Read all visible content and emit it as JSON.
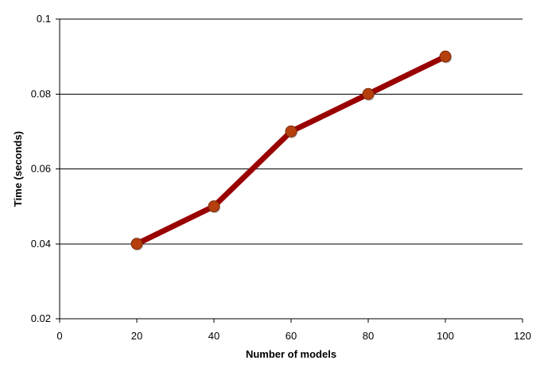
{
  "chart_data": {
    "type": "line",
    "title": "",
    "xlabel": "Number of models",
    "ylabel": "Time (seconds)",
    "xlim": [
      0,
      120
    ],
    "ylim": [
      0.02,
      0.1
    ],
    "x_ticks": [
      0,
      20,
      40,
      60,
      80,
      100,
      120
    ],
    "y_ticks": [
      0.02,
      0.04,
      0.06,
      0.08,
      0.1
    ],
    "x_tick_labels": [
      "0",
      "20",
      "40",
      "60",
      "80",
      "100",
      "120"
    ],
    "y_tick_labels": [
      "0.02",
      "0.04",
      "0.06",
      "0.08",
      "0.1"
    ],
    "grid": "horizontal",
    "legend": "none",
    "series": [
      {
        "x": [
          20,
          40,
          60,
          80,
          100
        ],
        "y": [
          0.04,
          0.05,
          0.07,
          0.08,
          0.09
        ],
        "line_color": "#990000",
        "marker_color": "#B5400E"
      }
    ]
  }
}
